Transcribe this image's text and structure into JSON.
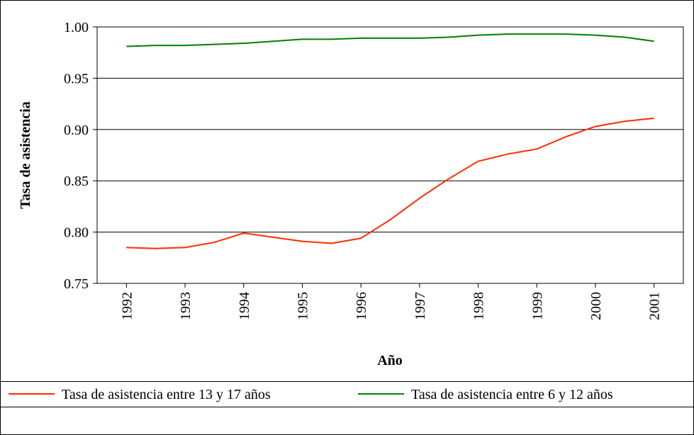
{
  "chart_data": {
    "type": "line",
    "x": [
      1992,
      1992.5,
      1993,
      1993.5,
      1994,
      1994.5,
      1995,
      1995.5,
      1996,
      1996.5,
      1997,
      1997.5,
      1998,
      1998.5,
      1999,
      1999.5,
      2000,
      2000.5,
      2001
    ],
    "xlim": [
      1991.5,
      2001.5
    ],
    "xticks": [
      1992,
      1993,
      1994,
      1995,
      1996,
      1997,
      1998,
      1999,
      2000,
      2001
    ],
    "ylim": [
      0.75,
      1.0
    ],
    "yticks": [
      {
        "value": 0.75,
        "label": "0.75"
      },
      {
        "value": 0.8,
        "label": "0.80"
      },
      {
        "value": 0.85,
        "label": "0.85"
      },
      {
        "value": 0.9,
        "label": "0.90"
      },
      {
        "value": 0.95,
        "label": "0.95"
      },
      {
        "value": 1.0,
        "label": "1.00"
      }
    ],
    "grid": true,
    "x_label": "Año",
    "y_label": "Tasa de asistencia",
    "series": [
      {
        "name": "Tasa de asistencia entre 13 y 17 años",
        "color": "#ff2a00",
        "values": [
          0.785,
          0.784,
          0.785,
          0.79,
          0.799,
          0.795,
          0.791,
          0.789,
          0.794,
          0.812,
          0.833,
          0.852,
          0.869,
          0.876,
          0.881,
          0.893,
          0.903,
          0.908,
          0.911
        ]
      },
      {
        "name": "Tasa de asistencia entre 6 y 12 años",
        "color": "#008000",
        "values": [
          0.981,
          0.982,
          0.982,
          0.983,
          0.984,
          0.986,
          0.988,
          0.988,
          0.989,
          0.989,
          0.989,
          0.99,
          0.992,
          0.993,
          0.993,
          0.993,
          0.992,
          0.99,
          0.986
        ]
      }
    ],
    "legend": "bottom"
  }
}
